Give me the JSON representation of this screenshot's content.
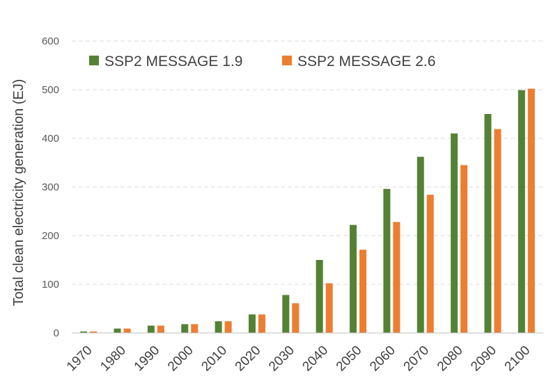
{
  "chart_data": {
    "type": "bar",
    "title": "",
    "xlabel": "",
    "ylabel": "Total clean electricity generation  (EJ)",
    "ylim": [
      0,
      600
    ],
    "yticks": [
      "0",
      "100",
      "200",
      "300",
      "400",
      "500",
      "600"
    ],
    "grid": true,
    "legend_position": "top-left",
    "categories": [
      "1970",
      "1980",
      "1990",
      "2000",
      "2010",
      "2020",
      "2030",
      "2040",
      "2050",
      "2060",
      "2070",
      "2080",
      "2090",
      "2100"
    ],
    "series": [
      {
        "name": "SSP2 MESSAGE 1.9",
        "color": "#548235",
        "values": [
          3,
          9,
          15,
          18,
          24,
          38,
          78,
          150,
          222,
          296,
          362,
          410,
          450,
          499
        ]
      },
      {
        "name": "SSP2 MESSAGE 2.6",
        "color": "#ED7D31",
        "values": [
          3,
          9,
          15,
          18,
          24,
          38,
          61,
          102,
          171,
          228,
          284,
          345,
          419,
          502
        ]
      }
    ]
  }
}
